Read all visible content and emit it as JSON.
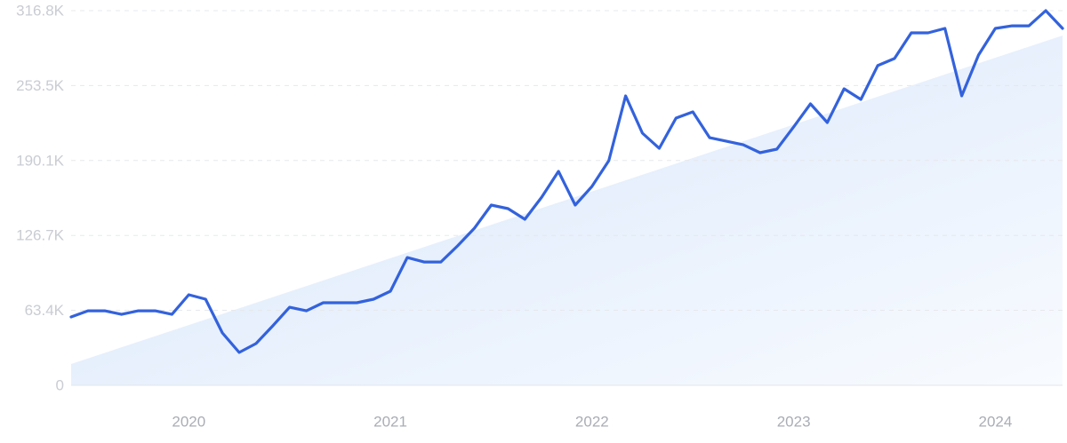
{
  "chart_data": {
    "type": "line",
    "categories": [
      null,
      null,
      null,
      null,
      null,
      null,
      null,
      "2020",
      null,
      null,
      null,
      null,
      null,
      null,
      null,
      null,
      null,
      null,
      null,
      "2021",
      null,
      null,
      null,
      null,
      null,
      null,
      null,
      null,
      null,
      null,
      null,
      "2022",
      null,
      null,
      null,
      null,
      null,
      null,
      null,
      null,
      null,
      null,
      null,
      "2023",
      null,
      null,
      null,
      null,
      null,
      null,
      null,
      null,
      null,
      null,
      null,
      "2024",
      null,
      null,
      null,
      null
    ],
    "values": [
      57800,
      63000,
      63000,
      60000,
      63000,
      63000,
      60000,
      76600,
      72800,
      44300,
      27800,
      35300,
      50300,
      66000,
      63000,
      69800,
      69800,
      69800,
      72800,
      79600,
      108000,
      104300,
      104300,
      117900,
      132900,
      152400,
      149400,
      140400,
      159100,
      180900,
      152400,
      168200,
      189900,
      244700,
      213200,
      200400,
      226000,
      231200,
      209400,
      206400,
      203400,
      196700,
      199700,
      218500,
      238000,
      222200,
      250700,
      241700,
      270300,
      276300,
      298000,
      298000,
      301800,
      244700,
      279300,
      301800,
      304000,
      304000,
      316800,
      301800
    ],
    "color": "#3362dc",
    "trend": [
      18000,
      295800
    ],
    "trend_color": "#dbe8fb",
    "ylim": [
      0,
      316800
    ],
    "yticks": [
      0,
      {
        "value": 63400,
        "label": "63.4K"
      },
      {
        "value": 126700,
        "label": "126.7K"
      },
      {
        "value": 190100,
        "label": "190.1K"
      },
      {
        "value": 253500,
        "label": "253.5K"
      },
      {
        "value": 316800,
        "label": "316.8K"
      }
    ],
    "grid": true
  }
}
